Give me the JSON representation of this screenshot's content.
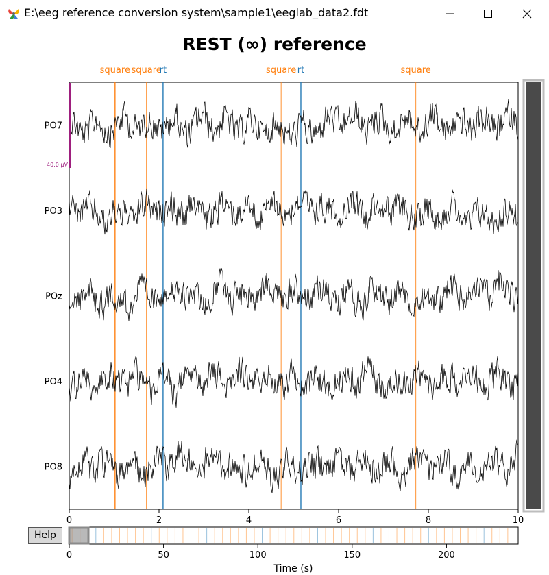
{
  "window": {
    "title": "E:\\eeg reference conversion system\\sample1\\eeglab_data2.fdt",
    "icon": "app-logo-icon",
    "controls": [
      "minimize-icon",
      "maximize-icon",
      "close-icon"
    ]
  },
  "figure": {
    "title": "REST (∞) reference",
    "help_label": "Help",
    "scale_label": "40.0 µV",
    "colors": {
      "square": "#ff7f0e",
      "rt": "#1f77b4",
      "scale": "#9e1f7e",
      "scrollbar": "#4a4a4a",
      "trace": "#000000"
    }
  },
  "chart_data": {
    "type": "line",
    "channels": [
      "PO7",
      "PO3",
      "POz",
      "PO4",
      "PO8"
    ],
    "xlim": [
      0,
      10
    ],
    "xticks": [
      "0",
      "2",
      "4",
      "6",
      "8",
      "10"
    ],
    "events": [
      {
        "label": "square",
        "x": 1.02,
        "type": "square"
      },
      {
        "label": "square",
        "x": 1.72,
        "type": "square"
      },
      {
        "label": "rt",
        "x": 2.09,
        "type": "rt"
      },
      {
        "label": "square",
        "x": 4.72,
        "type": "square"
      },
      {
        "label": "rt",
        "x": 5.16,
        "type": "rt"
      },
      {
        "label": "square",
        "x": 7.72,
        "type": "square"
      }
    ],
    "overview": {
      "xlabel": "Time (s)",
      "xlim": [
        0,
        238
      ],
      "xticks": [
        "0",
        "50",
        "100",
        "150",
        "200"
      ],
      "view_window": [
        0,
        10
      ]
    }
  }
}
